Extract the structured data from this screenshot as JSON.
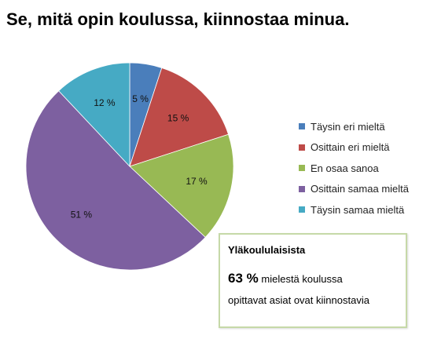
{
  "title": "Se, mitä opin koulussa, kiinnostaa minua.",
  "chart_data": {
    "type": "pie",
    "title": "Se, mitä opin koulussa, kiinnostaa minua.",
    "categories": [
      "Täysin eri mieltä",
      "Osittain eri mieltä",
      "En osaa sanoa",
      "Osittain samaa mieltä",
      "Täysin samaa mieltä"
    ],
    "values": [
      5,
      15,
      17,
      51,
      12
    ],
    "data_labels": [
      "5 %",
      "15 %",
      "17 %",
      "51 %",
      "12 %"
    ],
    "colors": [
      "#4a7ebb",
      "#be4b48",
      "#98b954",
      "#7d60a0",
      "#46aac4"
    ],
    "legend_position": "right"
  },
  "infobox": {
    "heading": "Yläkoululaisista",
    "percent": "63 %",
    "text1": "mielestä koulussa",
    "text2": "opittavat  asiat ovat kiinnostavia"
  }
}
